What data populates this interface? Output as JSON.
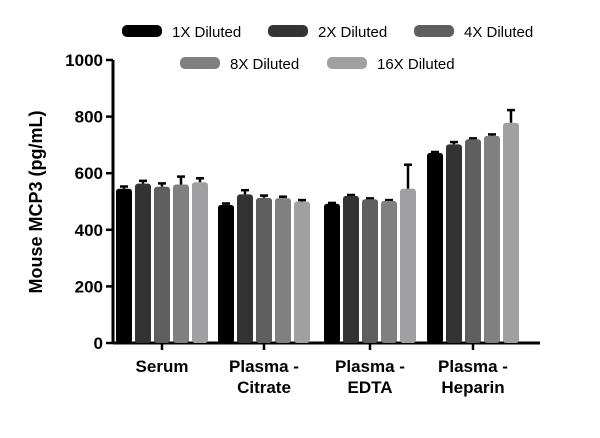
{
  "chart_data": {
    "type": "bar",
    "title": "",
    "xlabel": "",
    "ylabel": "Mouse MCP3 (pg/mL)",
    "ylim": [
      0,
      1000
    ],
    "yticks": [
      0,
      200,
      400,
      600,
      800,
      1000
    ],
    "categories": [
      [
        "Serum"
      ],
      [
        "Plasma -",
        "Citrate"
      ],
      [
        "Plasma -",
        "EDTA"
      ],
      [
        "Plasma -",
        "Heparin"
      ]
    ],
    "legend_position": "top",
    "grid": false,
    "series": [
      {
        "name": "1X Diluted",
        "color": "#000000",
        "values": [
          545,
          488,
          492,
          672
        ],
        "errors": [
          8,
          5,
          3,
          3
        ]
      },
      {
        "name": "2X Diluted",
        "color": "#333333",
        "values": [
          563,
          525,
          520,
          702
        ],
        "errors": [
          10,
          15,
          3,
          8
        ]
      },
      {
        "name": "4X Diluted",
        "color": "#5f5f5f",
        "values": [
          552,
          513,
          508,
          720
        ],
        "errors": [
          12,
          8,
          3,
          3
        ]
      },
      {
        "name": "8X Diluted",
        "color": "#808080",
        "values": [
          560,
          512,
          502,
          732
        ],
        "errors": [
          28,
          5,
          3,
          5
        ]
      },
      {
        "name": "16X Diluted",
        "color": "#a0a0a2",
        "values": [
          568,
          500,
          545,
          778
        ],
        "errors": [
          14,
          5,
          85,
          45
        ]
      }
    ]
  }
}
